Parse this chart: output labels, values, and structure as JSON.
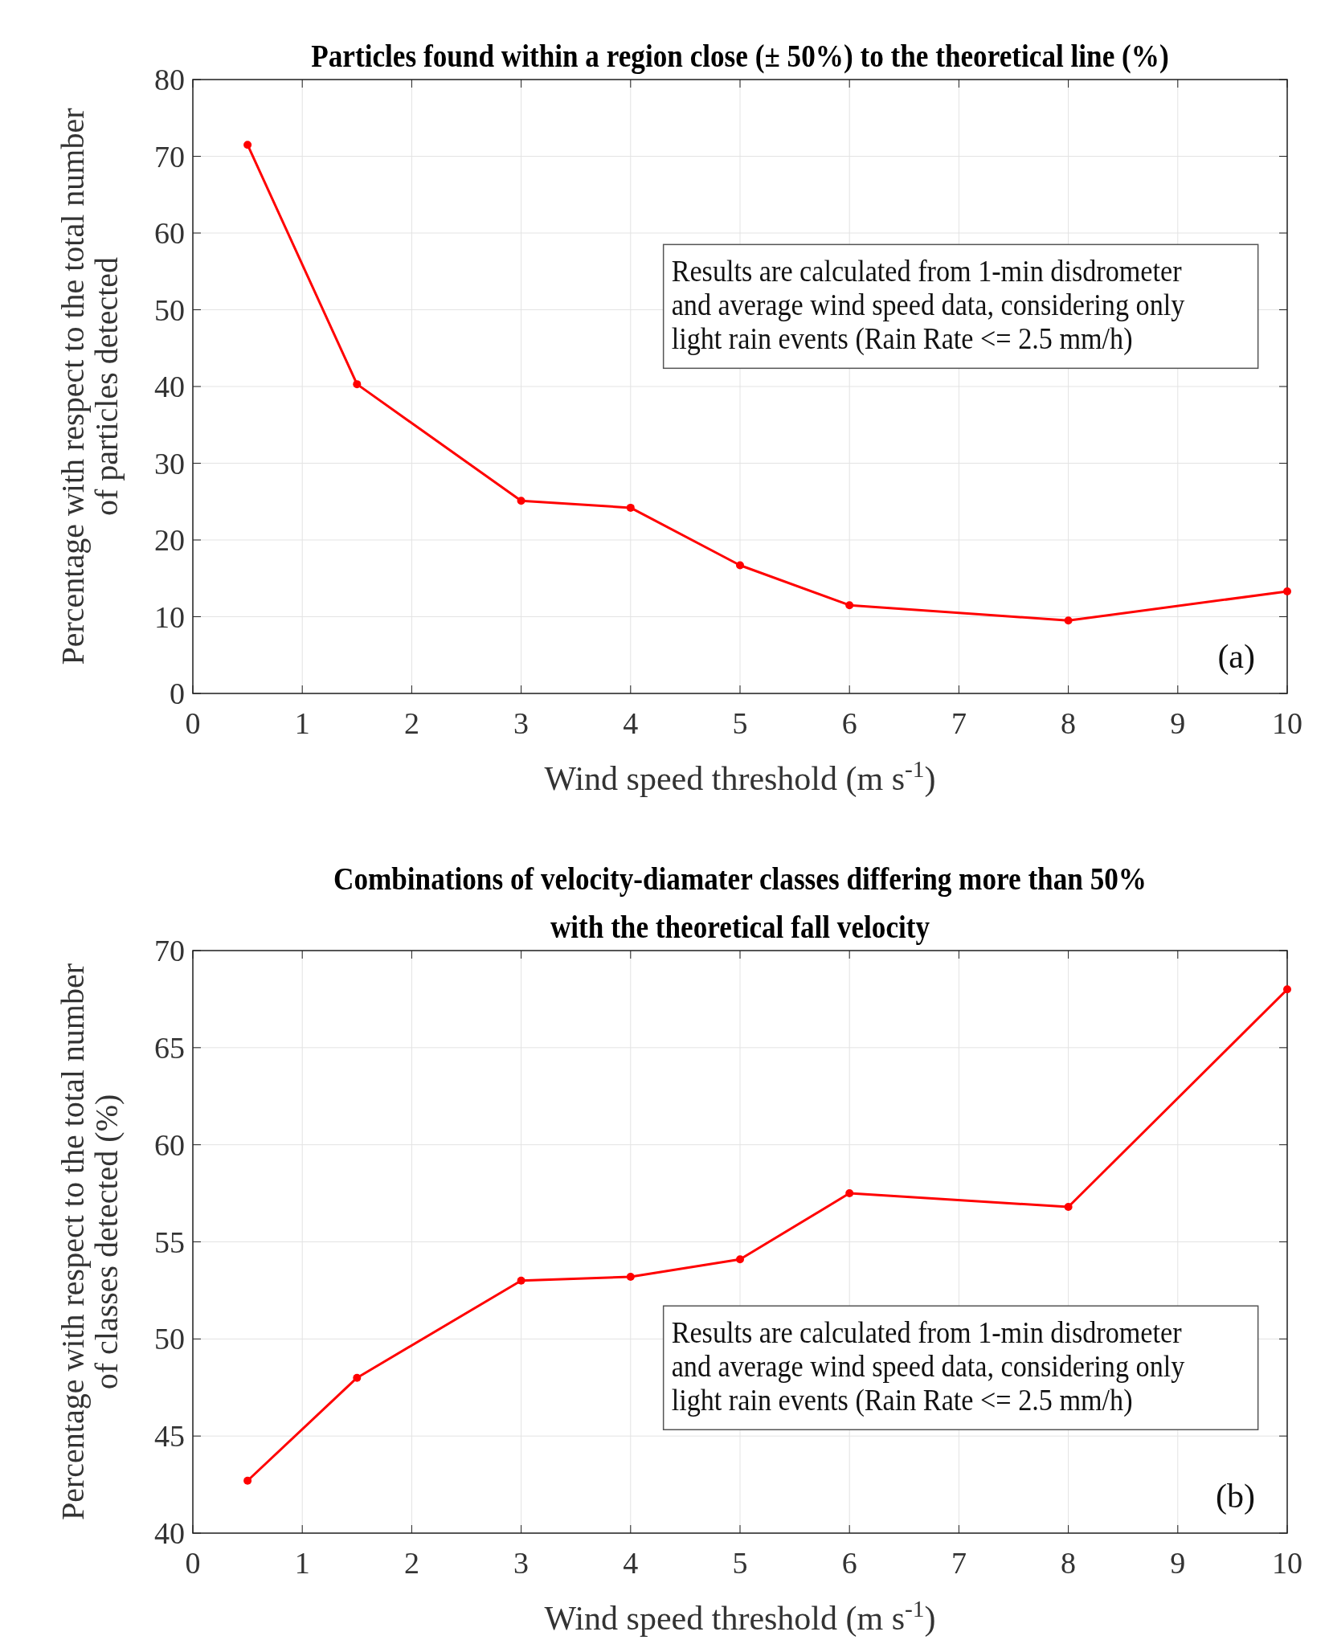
{
  "chart_data": [
    {
      "type": "line",
      "title": "Particles found within a region close (± 50%) to the theoretical line (%)",
      "xlabel": "Wind speed threshold (m s$^{-1}$)",
      "ylabel": "Percentage with respect to the total number\nof particles detected",
      "x": [
        0.5,
        1.5,
        3,
        4,
        5,
        6,
        8,
        10
      ],
      "series": [
        {
          "color": "#ff0000",
          "values": [
            71.5,
            40.3,
            25.1,
            24.2,
            16.7,
            11.5,
            9.5,
            13.3
          ]
        }
      ],
      "xlim": [
        0,
        10
      ],
      "xticks": [
        0,
        1,
        2,
        3,
        4,
        5,
        6,
        7,
        8,
        9,
        10
      ],
      "ylim": [
        0,
        80
      ],
      "yticks": [
        0,
        10,
        20,
        30,
        40,
        50,
        60,
        70,
        80
      ],
      "grid": true,
      "marker": "circle",
      "line_style": "solid",
      "annotations": [
        "Results are calculated from 1-min disdrometer\nand average wind speed data, considering only\nlight rain events (Rain Rate <= 2.5 mm/h)",
        "(a)"
      ]
    },
    {
      "type": "line",
      "title": "Combinations of velocity-diamater classes differing more than 50%\nwith the theoretical fall velocity",
      "xlabel": "Wind speed threshold (m s$^{-1}$)",
      "ylabel": "Percentage with respect to the total number\nof classes detected (%)",
      "x": [
        0.5,
        1.5,
        3,
        4,
        5,
        6,
        8,
        10
      ],
      "series": [
        {
          "color": "#ff0000",
          "values": [
            42.7,
            48.0,
            53.0,
            53.2,
            54.1,
            57.5,
            56.8,
            68.0
          ]
        }
      ],
      "xlim": [
        0,
        10
      ],
      "xticks": [
        0,
        1,
        2,
        3,
        4,
        5,
        6,
        7,
        8,
        9,
        10
      ],
      "ylim": [
        40,
        70
      ],
      "yticks": [
        40,
        45,
        50,
        55,
        60,
        65,
        70
      ],
      "grid": true,
      "marker": "circle",
      "line_style": "solid",
      "annotations": [
        "Results are calculated from 1-min disdrometer\nand average wind speed data, considering only\nlight rain events (Rain Rate <= 2.5 mm/h)",
        "(b)"
      ]
    }
  ]
}
